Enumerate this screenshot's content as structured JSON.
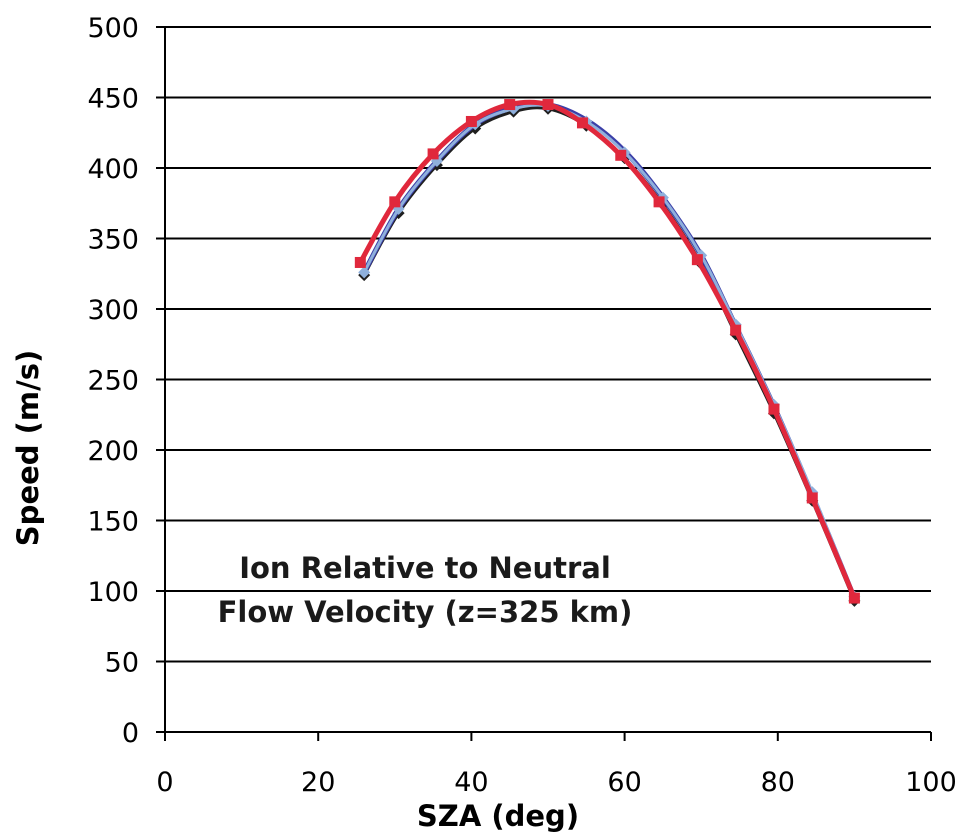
{
  "chart_data": {
    "type": "line",
    "title": "",
    "xlabel": "SZA (deg)",
    "ylabel": "Speed (m/s)",
    "xlim": [
      0,
      100
    ],
    "ylim": [
      0,
      500
    ],
    "xticks": [
      0,
      20,
      40,
      60,
      80,
      100
    ],
    "yticks": [
      0,
      50,
      100,
      150,
      200,
      250,
      300,
      350,
      400,
      450,
      500
    ],
    "grid": "horizontal",
    "legend": "none",
    "annotation": [
      "Ion Relative to Neutral",
      "Flow Velocity (z=325 km)"
    ],
    "series": [
      {
        "color": "#1f1f1f",
        "marker": "diamond",
        "x": [
          26,
          30.5,
          35.5,
          40.5,
          45.5,
          50,
          55,
          60,
          65,
          70,
          74.5,
          79.5,
          84.5,
          90
        ],
        "y": [
          324,
          368,
          402,
          428,
          440,
          442,
          430,
          407,
          374,
          332,
          282,
          226,
          164,
          93
        ]
      },
      {
        "color": "#3b3fa8",
        "marker": "none",
        "x": [
          26,
          30.5,
          35.5,
          40.5,
          45.5,
          50,
          55,
          60,
          65,
          70,
          74.5,
          79.5,
          84.5,
          90
        ],
        "y": [
          326,
          371,
          405,
          431,
          443,
          445,
          434,
          412,
          379,
          338,
          288,
          231,
          168,
          95
        ]
      },
      {
        "color": "#8fb0dc",
        "marker": "diamond",
        "x": [
          26,
          30.5,
          35.5,
          40.5,
          45.5,
          50,
          55,
          60,
          65,
          70,
          74.5,
          79.5,
          84.5,
          90
        ],
        "y": [
          326,
          371,
          405,
          431,
          442,
          444,
          433,
          411,
          379,
          338,
          289,
          232,
          170,
          96
        ]
      },
      {
        "color": "#e0283c",
        "marker": "square",
        "x": [
          25.5,
          30,
          35,
          40,
          45,
          50,
          54.5,
          59.5,
          64.5,
          69.5,
          74.5,
          79.5,
          84.5,
          90
        ],
        "y": [
          333,
          376,
          410,
          433,
          445,
          445,
          432,
          409,
          376,
          335,
          285,
          229,
          166,
          95
        ]
      }
    ]
  }
}
